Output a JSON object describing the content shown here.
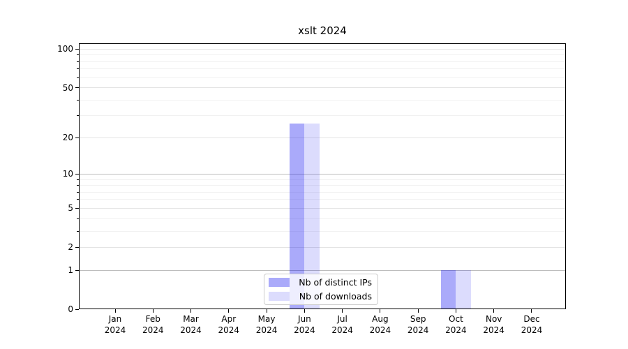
{
  "chart_data": {
    "type": "bar",
    "title": "xslt 2024",
    "x_tick_months": [
      "Jan",
      "Feb",
      "Mar",
      "Apr",
      "May",
      "Jun",
      "Jul",
      "Aug",
      "Sep",
      "Oct",
      "Nov",
      "Dec"
    ],
    "x_tick_year": "2024",
    "y_ticks": [
      0,
      1,
      2,
      5,
      10,
      20,
      50,
      100
    ],
    "y_minor_ticks": [
      3,
      4,
      6,
      7,
      8,
      9,
      30,
      40,
      60,
      70,
      80,
      90
    ],
    "y_scale": "log10(1+value)",
    "ylim": [
      0,
      111
    ],
    "grid": "on",
    "legend_position": "bottom-center",
    "series": [
      {
        "name": "Nb of distinct IPs",
        "color": "rgba(5,5,240,0.34)",
        "values": [
          0,
          0,
          0,
          0,
          0,
          26,
          0,
          0,
          0,
          1,
          0,
          0
        ]
      },
      {
        "name": "Nb of downloads",
        "color": "rgba(5,5,240,0.14)",
        "values": [
          0,
          0,
          0,
          0,
          0,
          26,
          0,
          0,
          0,
          1,
          0,
          0
        ]
      }
    ],
    "colors": {
      "decade_grid": "#bdbdbd",
      "labeled_grid": "#e4e4e4",
      "minor_grid": "#f1f1f1",
      "spine": "#000000",
      "background": "#ffffff"
    }
  }
}
